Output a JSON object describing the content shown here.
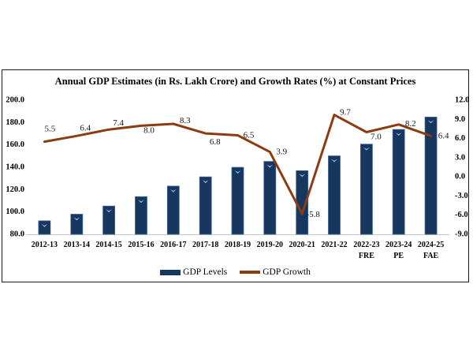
{
  "legend": {
    "items": [
      {
        "label": "GDP Levels",
        "marker": "bar"
      },
      {
        "label": "GDP Growth",
        "marker": "line"
      }
    ]
  },
  "colors": {
    "bar": "#17375E",
    "bar_stroke": "#3A66A0",
    "bar_highlight": "#8FB4E3",
    "line": "#8C3C10",
    "axis_line": "#C6C6C6",
    "frame_border": "#1A1A1A",
    "text": "#000000",
    "background": "#FFFFFF"
  },
  "chart_data": {
    "type": "bar",
    "subtype": "bar+line combo, dual axis",
    "title": "Annual GDP Estimates (in Rs. Lakh Crore) and Growth Rates (%) at Constant Prices",
    "categories": [
      "2012-13",
      "2013-14",
      "2014-15",
      "2015-16",
      "2016-17",
      "2017-18",
      "2018-19",
      "2019-20",
      "2020-21",
      "2021-22",
      "2022-23",
      "2023-24",
      "2024-25"
    ],
    "category_notes": [
      "",
      "",
      "",
      "",
      "",
      "",
      "",
      "",
      "",
      "",
      "FRE",
      "PE",
      "FAE"
    ],
    "series": [
      {
        "name": "GDP Levels",
        "type": "bar",
        "axis": "left",
        "values": [
          92.1,
          98.0,
          105.3,
          113.7,
          123.1,
          131.4,
          139.9,
          145.2,
          136.9,
          150.2,
          160.7,
          173.8,
          184.9
        ]
      },
      {
        "name": "GDP Growth",
        "type": "line",
        "axis": "right",
        "values": [
          5.5,
          6.4,
          7.4,
          8.0,
          8.3,
          6.8,
          6.5,
          3.9,
          -5.8,
          9.7,
          7.0,
          8.2,
          6.4
        ],
        "point_labels": [
          "5.5",
          "6.4",
          "7.4",
          "8.0",
          "8.3",
          "6.8",
          "6.5",
          "3.9",
          "-5.8",
          "9.7",
          "7.0",
          "8.2",
          "6.4"
        ]
      }
    ],
    "left_axis": {
      "min": 80,
      "max": 200,
      "step": 20,
      "tick_labels": [
        "200.0",
        "180.0",
        "160.0",
        "140.0",
        "120.0",
        "100.0",
        "80.0"
      ]
    },
    "right_axis": {
      "min": -9,
      "max": 12,
      "step": 3,
      "tick_labels": [
        "12.0",
        "9.0",
        "6.0",
        "3.0",
        "0.0",
        "-3.0",
        "-6.0",
        "-9.0"
      ]
    },
    "grid": false,
    "legend_position": "bottom"
  }
}
